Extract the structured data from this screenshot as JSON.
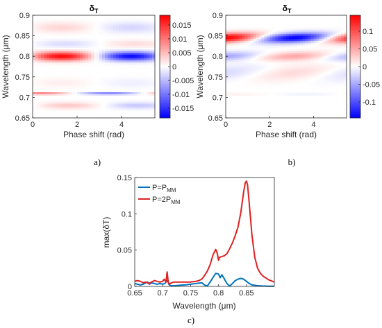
{
  "chart_data": [
    {
      "id": "a",
      "type": "heatmap",
      "title": "δ",
      "title_sub": "T",
      "xlabel": "Phase shift (rad)",
      "ylabel": "Wavelength (μm)",
      "xlim": [
        0,
        5.5
      ],
      "ylim": [
        0.65,
        0.9
      ],
      "xticks": [
        0,
        2,
        4
      ],
      "xtick_labels": [
        "0",
        "2",
        "4"
      ],
      "yticks": [
        0.65,
        0.7,
        0.75,
        0.8,
        0.85,
        0.9
      ],
      "ytick_labels": [
        "0.65",
        "0.7",
        "0.75",
        "0.8",
        "0.85",
        "0.9"
      ],
      "colormap": "blue-white-red",
      "clim": [
        -0.0185,
        0.0185
      ],
      "colorbar_ticks": [
        0.015,
        0.01,
        0.005,
        0,
        -0.005,
        -0.01,
        -0.015
      ],
      "colorbar_labels": [
        "0.015",
        "0.01",
        "0.005",
        "0",
        "-0.005",
        "-0.01",
        "-0.015"
      ],
      "panel_label": "a)",
      "features": [
        {
          "lambda": 0.8,
          "width": 0.011,
          "amp": 0.018,
          "phase_at_max": 1.3,
          "phase_slope": 0.0
        },
        {
          "lambda": 0.87,
          "width": 0.013,
          "amp": 0.003,
          "phase_at_max": 1.3,
          "phase_slope": 0.0
        },
        {
          "lambda": 0.83,
          "width": 0.01,
          "amp": 0.0025,
          "phase_at_max": 4.6,
          "phase_slope": 0.0
        },
        {
          "lambda": 0.709,
          "width": 0.0022,
          "amp": 0.014,
          "phase_at_max": 0.3,
          "phase_slope": 0.0
        },
        {
          "lambda": 0.68,
          "width": 0.008,
          "amp": 0.004,
          "phase_at_max": 1.6,
          "phase_slope": 0.0
        },
        {
          "lambda": 0.735,
          "width": 0.012,
          "amp": 0.0012,
          "phase_at_max": 1.3,
          "phase_slope": 0.0
        }
      ]
    },
    {
      "id": "b",
      "type": "heatmap",
      "title": "δ",
      "title_sub": "T",
      "xlabel": "Phase shift (rad)",
      "ylabel": "Wavelength (μm)",
      "xlim": [
        0,
        5.5
      ],
      "ylim": [
        0.65,
        0.9
      ],
      "xticks": [
        0,
        2,
        4
      ],
      "xtick_labels": [
        "0",
        "2",
        "4"
      ],
      "yticks": [
        0.65,
        0.7,
        0.75,
        0.8,
        0.85,
        0.9
      ],
      "ytick_labels": [
        "0.65",
        "0.7",
        "0.75",
        "0.8",
        "0.85",
        "0.9"
      ],
      "colormap": "blue-white-red",
      "clim": [
        -0.145,
        0.145
      ],
      "colorbar_ticks": [
        0.1,
        0.05,
        0,
        -0.05,
        -0.1
      ],
      "colorbar_labels": [
        "0.1",
        "0.05",
        "0",
        "-0.05",
        "-0.1"
      ],
      "panel_label": "b)",
      "features": [
        {
          "lambda": 0.845,
          "width": 0.012,
          "amp": 0.145,
          "phase_at_max": 0.0,
          "phase_slope": -40
        },
        {
          "lambda": 0.8,
          "width": 0.011,
          "amp": 0.05,
          "phase_at_max": 3.1,
          "phase_slope": -40
        },
        {
          "lambda": 0.76,
          "width": 0.02,
          "amp": 0.02,
          "phase_at_max": 3.1,
          "phase_slope": -40
        },
        {
          "lambda": 0.708,
          "width": 0.003,
          "amp": 0.01,
          "phase_at_max": 0.5,
          "phase_slope": 0.0
        }
      ]
    },
    {
      "id": "c",
      "type": "line",
      "xlabel": "Wavelength (μm)",
      "ylabel": "max(δT)",
      "xlim": [
        0.65,
        0.9
      ],
      "ylim": [
        0,
        0.15
      ],
      "xticks": [
        0.65,
        0.7,
        0.75,
        0.8,
        0.85
      ],
      "xtick_labels": [
        "0.65",
        "0.7",
        "0.75",
        "0.8",
        "0.85"
      ],
      "yticks": [
        0,
        0.05,
        0.1,
        0.15
      ],
      "ytick_labels": [
        "0",
        "0.05",
        "0.1",
        "0.15"
      ],
      "legend_position": "top-left",
      "panel_label": "c)",
      "series": [
        {
          "name": "P=P",
          "name_sub": "MM",
          "color": "#0072BD",
          "x": [
            0.65,
            0.655,
            0.66,
            0.665,
            0.67,
            0.673,
            0.676,
            0.68,
            0.685,
            0.69,
            0.695,
            0.7,
            0.704,
            0.707,
            0.709,
            0.711,
            0.714,
            0.72,
            0.73,
            0.74,
            0.75,
            0.76,
            0.77,
            0.775,
            0.78,
            0.785,
            0.79,
            0.795,
            0.8,
            0.803,
            0.806,
            0.81,
            0.815,
            0.82,
            0.825,
            0.83,
            0.835,
            0.84,
            0.845,
            0.85,
            0.855,
            0.86,
            0.87,
            0.88,
            0.89,
            0.9
          ],
          "y": [
            0.004,
            0.003,
            0.002,
            0.003,
            0.005,
            0.006,
            0.003,
            0.005,
            0.004,
            0.003,
            0.004,
            0.003,
            0.004,
            0.007,
            0.008,
            0.003,
            0.001,
            0.0008,
            0.0015,
            0.002,
            0.003,
            0.004,
            0.005,
            0.002,
            0.0005,
            0.006,
            0.012,
            0.018,
            0.017,
            0.012,
            0.016,
            0.011,
            0.004,
            0.0005,
            0.004,
            0.008,
            0.01,
            0.011,
            0.01,
            0.007,
            0.004,
            0.002,
            0.001,
            0.0005,
            0.0003,
            0.0002
          ]
        },
        {
          "name": "P=2P",
          "name_sub": "MM",
          "color": "#E02020",
          "x": [
            0.65,
            0.655,
            0.66,
            0.665,
            0.67,
            0.675,
            0.68,
            0.685,
            0.69,
            0.695,
            0.7,
            0.703,
            0.706,
            0.708,
            0.71,
            0.712,
            0.716,
            0.72,
            0.73,
            0.74,
            0.75,
            0.76,
            0.765,
            0.77,
            0.775,
            0.78,
            0.785,
            0.79,
            0.795,
            0.798,
            0.8,
            0.802,
            0.805,
            0.81,
            0.815,
            0.82,
            0.825,
            0.83,
            0.835,
            0.84,
            0.845,
            0.848,
            0.85,
            0.852,
            0.855,
            0.86,
            0.865,
            0.87,
            0.875,
            0.88,
            0.89,
            0.9
          ],
          "y": [
            0.007,
            0.008,
            0.007,
            0.005,
            0.006,
            0.004,
            0.006,
            0.008,
            0.007,
            0.006,
            0.007,
            0.01,
            0.006,
            0.02,
            0.006,
            0.003,
            0.005,
            0.006,
            0.006,
            0.006,
            0.006,
            0.007,
            0.008,
            0.01,
            0.015,
            0.021,
            0.03,
            0.043,
            0.051,
            0.045,
            0.036,
            0.04,
            0.041,
            0.042,
            0.045,
            0.052,
            0.06,
            0.07,
            0.082,
            0.102,
            0.13,
            0.143,
            0.145,
            0.14,
            0.115,
            0.07,
            0.04,
            0.025,
            0.018,
            0.014,
            0.009,
            0.006
          ]
        }
      ]
    }
  ]
}
